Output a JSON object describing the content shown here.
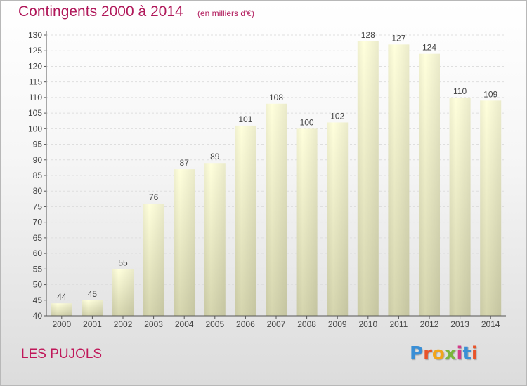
{
  "chart_data": {
    "type": "bar",
    "title": "Contingents 2000 à 2014",
    "subtitle": "(en milliers d'€)",
    "categories": [
      "2000",
      "2001",
      "2002",
      "2003",
      "2004",
      "2005",
      "2006",
      "2007",
      "2008",
      "2009",
      "2010",
      "2011",
      "2012",
      "2013",
      "2014"
    ],
    "values": [
      44,
      45,
      55,
      76,
      87,
      89,
      101,
      108,
      100,
      102,
      128,
      127,
      124,
      110,
      109
    ],
    "ylim": [
      40,
      130
    ],
    "yticks": [
      40,
      45,
      50,
      55,
      60,
      65,
      70,
      75,
      80,
      85,
      90,
      95,
      100,
      105,
      110,
      115,
      120,
      125,
      130
    ],
    "grid": true,
    "data_labels": true
  },
  "footer": {
    "location": "LES PUJOLS",
    "logo_text": "Proxiti"
  },
  "colors": {
    "title": "#b0185a",
    "bar_top": "#ffffd8",
    "bar_bottom": "#d6d6ad"
  }
}
